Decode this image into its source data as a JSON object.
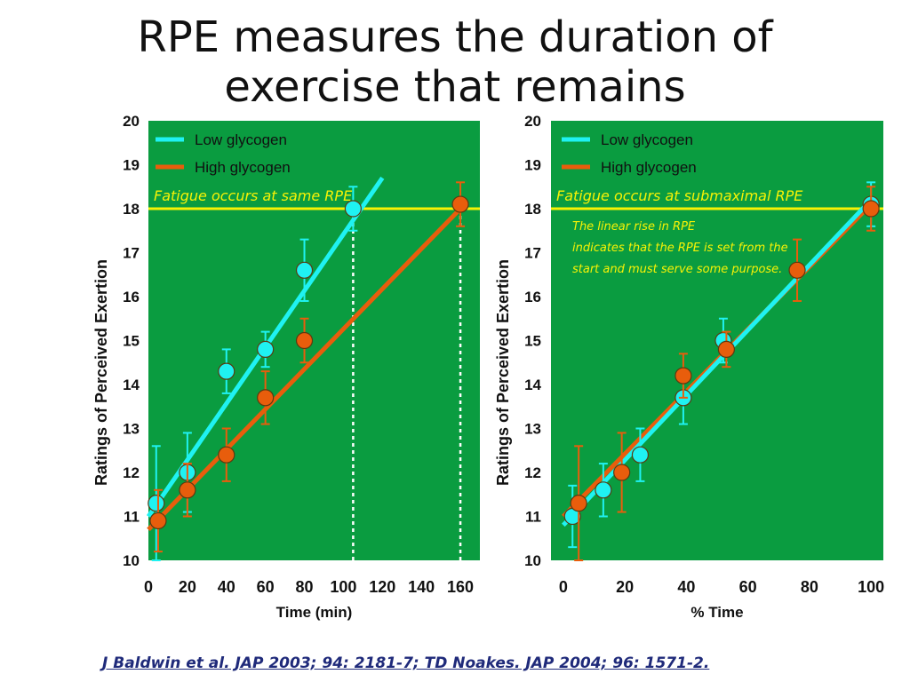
{
  "title": [
    "RPE measures the duration of",
    "exercise that remains"
  ],
  "citation": "J Baldwin et al.  JAP 2003; 94: 2181-7; TD Noakes.  JAP 2004; 96: 1571-2.",
  "colors": {
    "plot_bg": "#0a9c40",
    "low": "#1ff2f2",
    "high": "#e85d0c",
    "fatigue_line": "#f7f205",
    "text_note": "#f7f205",
    "axis_text": "#111111"
  },
  "chart_data": [
    {
      "type": "scatter",
      "title": "",
      "xlabel": "Time (min)",
      "ylabel": "Ratings of Perceived Exertion",
      "xlim": [
        0,
        170
      ],
      "ylim": [
        10,
        20
      ],
      "xticks": [
        "0",
        "20",
        "40",
        "60",
        "80",
        "100",
        "120",
        "140",
        "160"
      ],
      "yticks": [
        "10",
        "11",
        "12",
        "13",
        "14",
        "15",
        "16",
        "17",
        "18",
        "19",
        "20"
      ],
      "fatigue_rpe": 18,
      "annotation": "Fatigue occurs at same RPE",
      "note": [],
      "vlines": [
        105,
        160
      ],
      "series": [
        {
          "name": "Low glycogen",
          "color": "#1ff2f2",
          "x": [
            4,
            20,
            40,
            60,
            80,
            105
          ],
          "y": [
            11.3,
            12.0,
            14.3,
            14.8,
            16.6,
            18.0
          ],
          "err": [
            1.3,
            0.9,
            0.5,
            0.4,
            0.7,
            0.5
          ],
          "fit": {
            "x": [
              0,
              120
            ],
            "y": [
              11.0,
              18.7
            ]
          }
        },
        {
          "name": "High glycogen",
          "color": "#e85d0c",
          "x": [
            5,
            20,
            40,
            60,
            80,
            160
          ],
          "y": [
            10.9,
            11.6,
            12.4,
            13.7,
            15.0,
            18.1
          ],
          "err": [
            0.7,
            0.6,
            0.6,
            0.6,
            0.5,
            0.5
          ],
          "fit": {
            "x": [
              0,
              160
            ],
            "y": [
              10.7,
              18.0
            ]
          }
        }
      ]
    },
    {
      "type": "scatter",
      "title": "",
      "xlabel": "% Time",
      "ylabel": "Ratings of Perceived Exertion",
      "xlim": [
        -4,
        104
      ],
      "ylim": [
        10,
        20
      ],
      "xticks": [
        "0",
        "20",
        "40",
        "60",
        "80",
        "100"
      ],
      "yticks": [
        "10",
        "11",
        "12",
        "13",
        "14",
        "15",
        "16",
        "17",
        "18",
        "19",
        "20"
      ],
      "fatigue_rpe": 18,
      "annotation": "Fatigue occurs at submaximal RPE",
      "note": [
        "The linear rise in RPE",
        "indicates that the RPE is set from the",
        " start and must serve some purpose."
      ],
      "vlines": [],
      "series": [
        {
          "name": "Low glycogen",
          "color": "#1ff2f2",
          "x": [
            3,
            13,
            25,
            39,
            52,
            100
          ],
          "y": [
            11.0,
            11.6,
            12.4,
            13.7,
            15.0,
            18.1
          ],
          "err": [
            0.7,
            0.6,
            0.6,
            0.6,
            0.5,
            0.5
          ],
          "fit": {
            "x": [
              0,
              100
            ],
            "y": [
              10.8,
              18.2
            ]
          }
        },
        {
          "name": "High glycogen",
          "color": "#e85d0c",
          "x": [
            5,
            19,
            39,
            53,
            76,
            100
          ],
          "y": [
            11.3,
            12.0,
            14.2,
            14.8,
            16.6,
            18.0
          ],
          "err": [
            1.3,
            0.9,
            0.5,
            0.4,
            0.7,
            0.5
          ],
          "fit": {
            "x": [
              0,
              100
            ],
            "y": [
              11.0,
              18.1
            ]
          }
        }
      ]
    }
  ]
}
